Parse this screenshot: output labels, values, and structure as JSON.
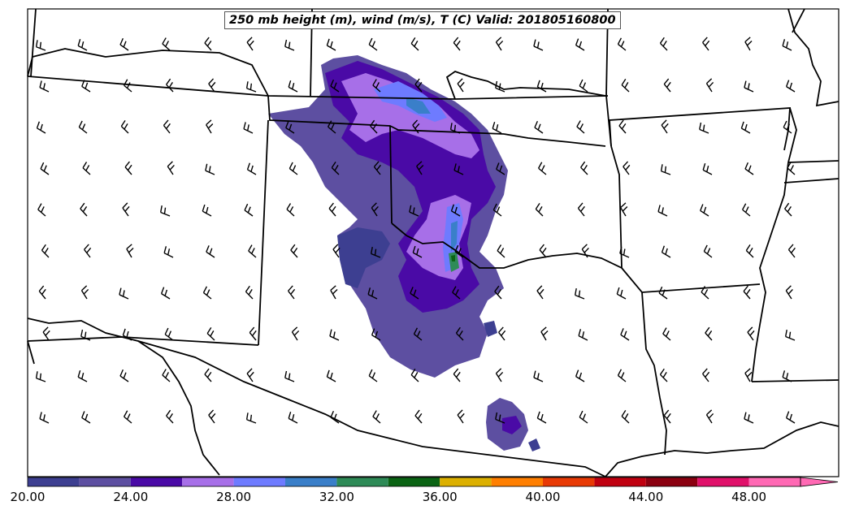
{
  "title": "250 mb height (m), wind (m/s), T (C) Valid: 201805160800",
  "colorbar": {
    "bins": [
      {
        "lo": 20,
        "hi": 22,
        "color": "#3d3f91"
      },
      {
        "lo": 22,
        "hi": 24,
        "color": "#5d4fa1"
      },
      {
        "lo": 24,
        "hi": 26,
        "color": "#4a0aa6"
      },
      {
        "lo": 26,
        "hi": 28,
        "color": "#a76fe8"
      },
      {
        "lo": 28,
        "hi": 30,
        "color": "#6e7bff"
      },
      {
        "lo": 30,
        "hi": 32,
        "color": "#3a7fc9"
      },
      {
        "lo": 32,
        "hi": 34,
        "color": "#2e8b57"
      },
      {
        "lo": 34,
        "hi": 36,
        "color": "#0b6414"
      },
      {
        "lo": 36,
        "hi": 38,
        "color": "#dcb000"
      },
      {
        "lo": 38,
        "hi": 40,
        "color": "#ff7f00"
      },
      {
        "lo": 40,
        "hi": 42,
        "color": "#e83a05"
      },
      {
        "lo": 42,
        "hi": 44,
        "color": "#c00010"
      },
      {
        "lo": 44,
        "hi": 46,
        "color": "#8b0010"
      },
      {
        "lo": 46,
        "hi": 48,
        "color": "#e0106a"
      },
      {
        "lo": 48,
        "hi": 50,
        "color": "#ff69b4"
      }
    ],
    "extend": "max",
    "tick_labels": [
      "20.00",
      "24.00",
      "28.00",
      "32.00",
      "36.00",
      "40.00",
      "44.00",
      "48.00"
    ],
    "tick_values": [
      20,
      24,
      28,
      32,
      36,
      40,
      44,
      48
    ]
  },
  "map": {
    "barb_color": "#000000",
    "border_color": "#000000",
    "fill_low": "#3d3f91",
    "fill_mid": "#5d4fa1",
    "fill_dark": "#4a0aa6",
    "fill_light": "#a76fe8",
    "fill_blue": "#6e7bff",
    "fill_steel": "#3a7fc9",
    "fill_green": "#2e8b57",
    "fill_dgreen": "#0b6414"
  }
}
